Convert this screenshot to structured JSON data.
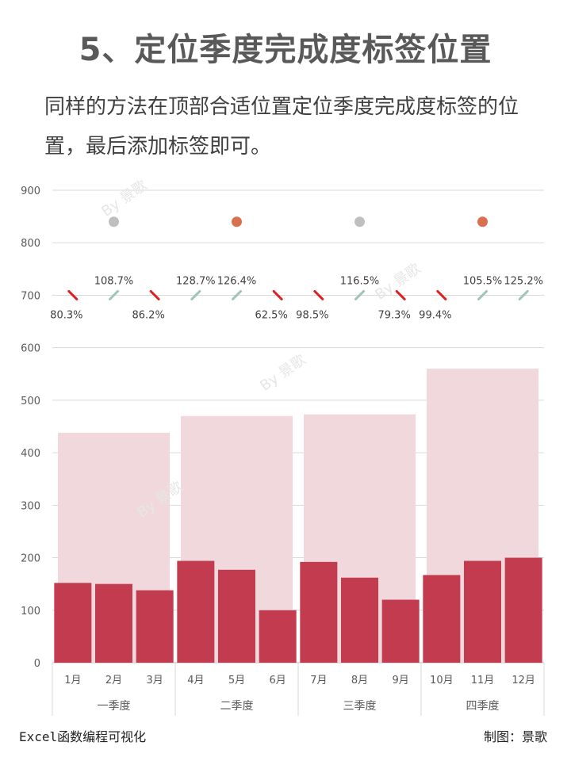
{
  "header": {
    "title": "5、定位季度完成度标签位置",
    "subtitle": "同样的方法在顶部合适位置定位季度完成度标签的位置，最后添加标签即可。"
  },
  "footer": {
    "left": "Excel函数编程可视化",
    "right": "制图：景歌"
  },
  "watermark": "By 景歌",
  "chart_data": {
    "type": "bar",
    "ylim": [
      0,
      900
    ],
    "yticks": [
      0,
      100,
      200,
      300,
      400,
      500,
      600,
      700,
      800,
      900
    ],
    "grid": true,
    "categories": [
      "1月",
      "2月",
      "3月",
      "4月",
      "5月",
      "6月",
      "7月",
      "8月",
      "9月",
      "10月",
      "11月",
      "12月"
    ],
    "monthly_values": [
      152,
      150,
      138,
      194,
      177,
      100,
      192,
      162,
      120,
      167,
      194,
      200
    ],
    "quarters": [
      {
        "label": "一季度",
        "target": 438,
        "marker_value": 840,
        "marker_color": "#bfbfbf"
      },
      {
        "label": "二季度",
        "target": 470,
        "marker_value": 840,
        "marker_color": "#d9704f"
      },
      {
        "label": "三季度",
        "target": 473,
        "marker_value": 840,
        "marker_color": "#bfbfbf"
      },
      {
        "label": "四季度",
        "target": 560,
        "marker_value": 840,
        "marker_color": "#d9704f"
      }
    ],
    "month_completion": [
      {
        "label": "80.3%",
        "direction": "down"
      },
      {
        "label": "108.7%",
        "direction": "up"
      },
      {
        "label": "86.2%",
        "direction": "down"
      },
      {
        "label": "128.7%",
        "direction": "up"
      },
      {
        "label": "126.4%",
        "direction": "up"
      },
      {
        "label": "62.5%",
        "direction": "down"
      },
      {
        "label": "98.5%",
        "direction": "down"
      },
      {
        "label": "116.5%",
        "direction": "up"
      },
      {
        "label": "79.3%",
        "direction": "down"
      },
      {
        "label": "99.4%",
        "direction": "down"
      },
      {
        "label": "105.5%",
        "direction": "up"
      },
      {
        "label": "125.2%",
        "direction": "up"
      }
    ],
    "indicator_level": 700,
    "colors": {
      "bar": "#c23b4f",
      "target": "#f0d8dc",
      "up_arrow": "#9fc5b6",
      "down_arrow": "#e02020",
      "grid": "#d9d9d9",
      "axis_text": "#595959"
    }
  }
}
